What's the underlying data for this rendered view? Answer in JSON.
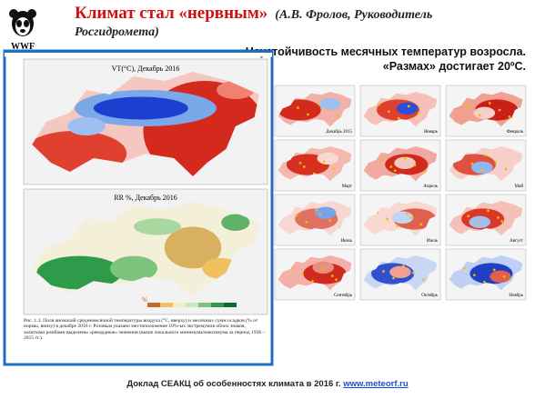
{
  "header": {
    "logo": "WWF",
    "title": "Климат стал «нервным»",
    "attribution": "(А.В. Фролов, Руководитель Росгидромета)",
    "subtitle_1": "Неустойчивость месячных температур возросла.",
    "subtitle_2": "«Размах» достигает 20ºС."
  },
  "left_panel": {
    "map_1_title": "VT(°C), Декабрь 2016",
    "map_2_title": "RR %, Декабрь 2016",
    "legend_unit": "%",
    "caption": "Рис. 1.3. Поля аномалий среднемесячной температуры воздуха (°C, вверху) и месячных сумм осадков (% от нормы, внизу) в декабре 2016 г. Розовым указано местоположение 10%-ых экстремумов обоих знаков, залитыми ромбами выделены «рекордные» значения (выше локального минимума/максимума за период 1936 – 2015 гг.)."
  },
  "monthly_maps": [
    "Декабрь 2015",
    "Январь",
    "Февраль",
    "Март",
    "Апрель",
    "Май",
    "Июнь",
    "Июль",
    "Август",
    "Сентябрь",
    "Октябрь",
    "Ноябрь"
  ],
  "footer": {
    "text": "Доклад СЕАКЦ об особенностях климата в 2016 г.",
    "link": "www.meteorf.ru"
  }
}
